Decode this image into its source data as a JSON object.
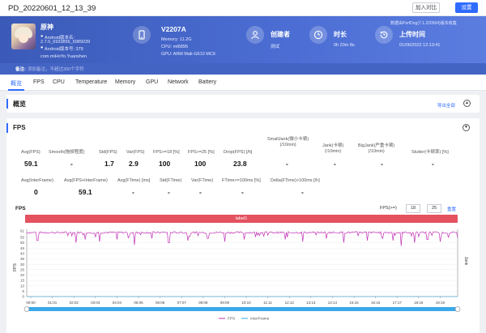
{
  "header": {
    "title": "PD_20220601_12_13_39",
    "compare_label": "加入对比",
    "settings_label": "设置"
  },
  "app": {
    "name": "原神",
    "version_line": "Android版本名:",
    "version": "2.7.0_6933856_6989239",
    "version_code_line": "Android版本号: 379",
    "package": "com.miHoYo.Yuanshen",
    "note_label": "备注:",
    "note_placeholder": "添加备注，不超过300个字符"
  },
  "device": {
    "name": "V2207A",
    "memory": "Memory: 11.2G",
    "cpu": "CPU: mt6895",
    "gpu": "GPU: ARM Mali-G610 MC6"
  },
  "stats": [
    {
      "label": "创建者",
      "value": "测试"
    },
    {
      "label": "时长",
      "value": "0h 20m 8s"
    },
    {
      "label": "上传时间",
      "value": "01/06/2022 12:13:41"
    }
  ],
  "perfdog_version": "数据由PerfDog(7.1.220504)版本收集",
  "tabs": [
    "概览",
    "FPS",
    "CPU",
    "Temperature",
    "Memory",
    "GPU",
    "Network",
    "Battery"
  ],
  "overview": {
    "title": "概览",
    "export_label": "导出全部"
  },
  "fps_section": {
    "title": "FPS",
    "metrics_row1": [
      {
        "label": "Avg(FPS)",
        "value": "59.1"
      },
      {
        "label": "Smooth(拖帧程度)",
        "value": "-"
      },
      {
        "label": "Std(FPS)",
        "value": "1.7"
      },
      {
        "label": "Var(FPS)",
        "value": "2.9"
      },
      {
        "label": "FPS>=18 [%]",
        "value": "100"
      },
      {
        "label": "FPS>=25 [%]",
        "value": "100"
      },
      {
        "label": "Drop(FPS) [/h]",
        "value": "23.8"
      },
      {
        "label": "SmallJank(微小卡顿)\n(/10min)",
        "value": "-"
      },
      {
        "label": "Jank(卡顿)\n(/10min)",
        "value": "-"
      },
      {
        "label": "BigJank(严重卡顿)\n(/10min)",
        "value": "-"
      },
      {
        "label": "Stutter(卡顿率) [%]",
        "value": "-"
      }
    ],
    "metrics_row2": [
      {
        "label": "Avg(InterFrame)",
        "value": "0"
      },
      {
        "label": "Avg(FPS+InterFrame)",
        "value": "59.1"
      },
      {
        "label": "Avg(FTime) [ms]",
        "value": "-"
      },
      {
        "label": "Std(FTime)",
        "value": "-"
      },
      {
        "label": "Var(FTime)",
        "value": "-"
      },
      {
        "label": "FTime>=100ms [%]",
        "value": "-"
      },
      {
        "label": "Delta(FTime)>100ms [/h]",
        "value": "-"
      }
    ]
  },
  "chart_controls": {
    "title": "FPS",
    "range_label": "FPS(>=)",
    "range_min": "18",
    "range_max": "25",
    "reset_label": "重置",
    "marker_label": "label1"
  },
  "chart_data": {
    "type": "line",
    "ylabel": "FPS",
    "ylabel_right": "Jank",
    "y_ticks": [
      "61",
      "55",
      "50",
      "45",
      "40",
      "35",
      "30",
      "25",
      "20",
      "15",
      "10",
      "5",
      "0"
    ],
    "ylim": [
      0,
      61
    ],
    "x_ticks": [
      "00:00",
      "01:01",
      "02:02",
      "03:03",
      "04:04",
      "05:05",
      "06:06",
      "07:07",
      "08:08",
      "09:09",
      "10:10",
      "11:11",
      "12:12",
      "13:13",
      "14:14",
      "15:15",
      "16:16",
      "17:17",
      "18:18",
      "19:19"
    ],
    "series": [
      {
        "name": "FPS",
        "color": "#c030b4",
        "baseline": 59.5,
        "dips": [
          [
            0.5,
            52
          ],
          [
            2.3,
            50
          ],
          [
            2.7,
            53
          ],
          [
            3.4,
            51
          ],
          [
            4.2,
            53
          ],
          [
            5.0,
            48
          ],
          [
            5.8,
            54
          ],
          [
            6.6,
            50
          ],
          [
            7.5,
            52
          ],
          [
            8.4,
            54
          ],
          [
            9.2,
            51
          ],
          [
            10.1,
            53
          ],
          [
            11.0,
            49
          ],
          [
            12.0,
            53
          ],
          [
            12.8,
            51
          ],
          [
            13.9,
            54
          ],
          [
            14.7,
            50
          ],
          [
            15.8,
            52
          ],
          [
            16.5,
            54
          ],
          [
            17.0,
            52
          ],
          [
            17.4,
            47
          ],
          [
            18.0,
            50
          ],
          [
            18.6,
            53
          ],
          [
            19.2,
            51
          ]
        ]
      },
      {
        "name": "InterFrame",
        "color": "#2fa8e8",
        "values": [
          0
        ]
      }
    ]
  }
}
